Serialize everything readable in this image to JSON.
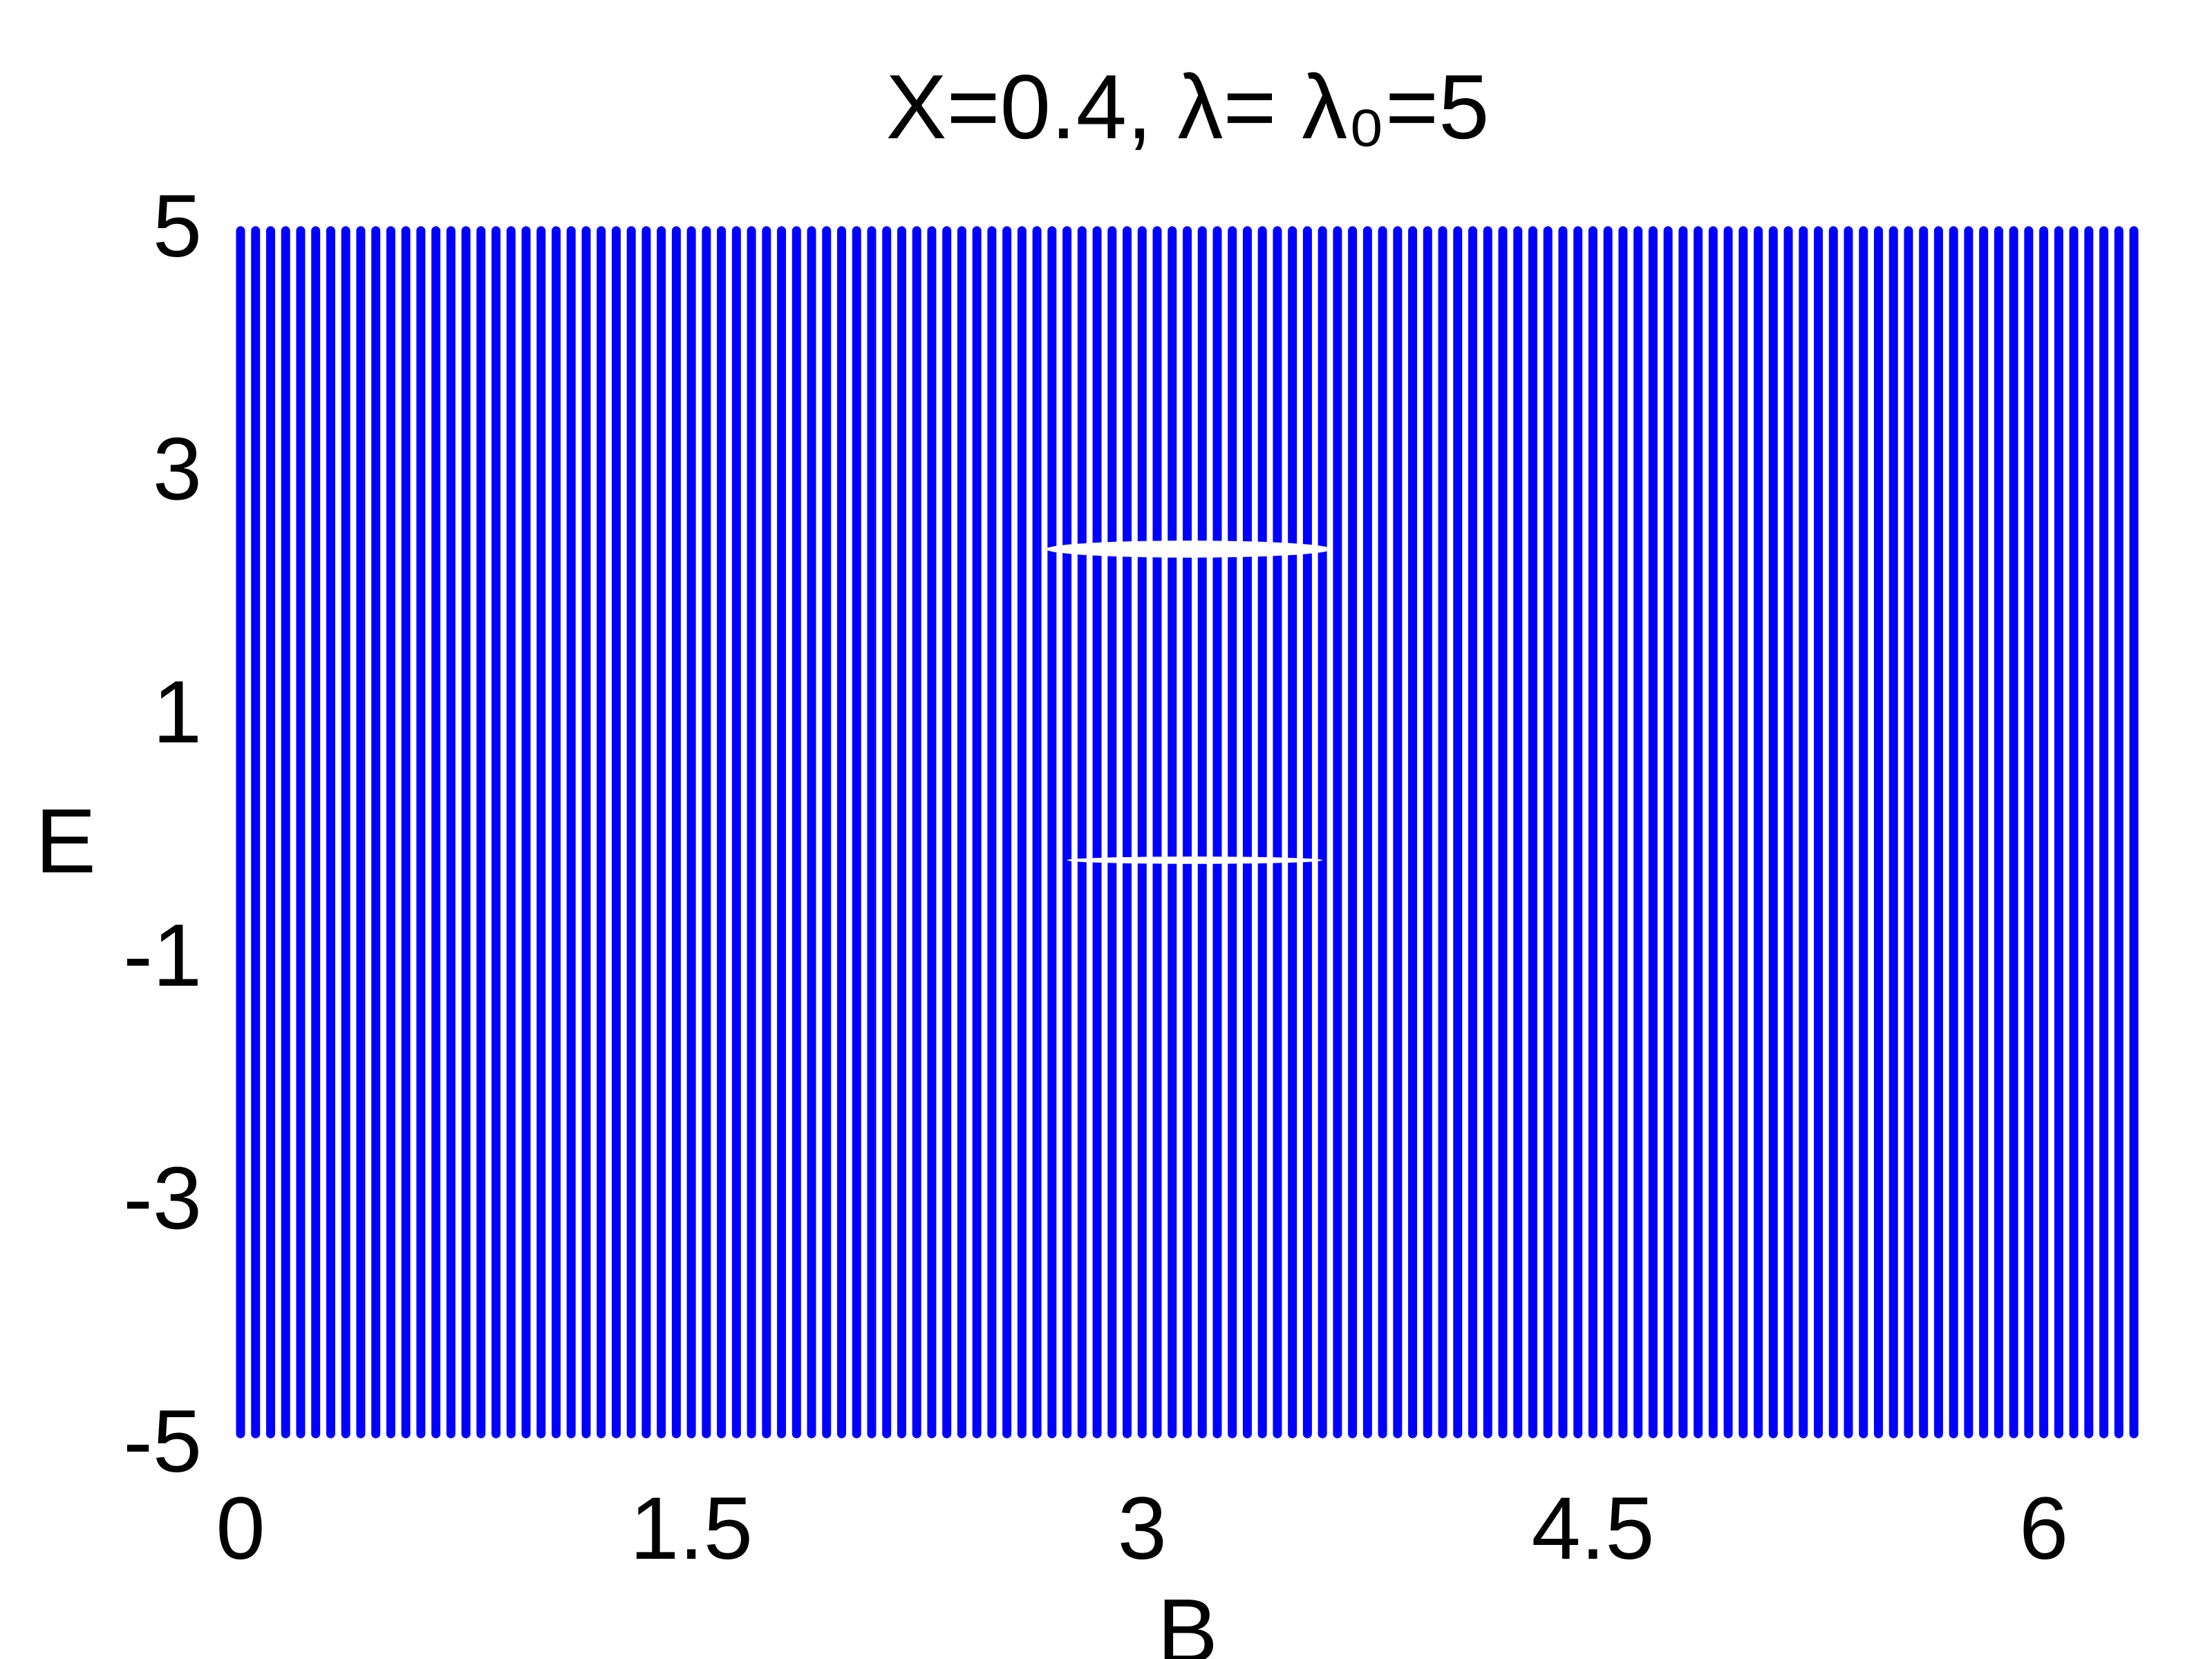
{
  "chart_data": {
    "type": "spectrum",
    "title": "X=0.4, λ= λ₀=5",
    "x_label": "B",
    "y_label": "E",
    "color": "#0000ff",
    "x": [
      0,
      0.05,
      0.1,
      0.15,
      0.2,
      0.25,
      0.3,
      0.35,
      0.4,
      0.45,
      0.5,
      0.55,
      0.6,
      0.65,
      0.7,
      0.75,
      0.8,
      0.85,
      0.9,
      0.95,
      1,
      1.05,
      1.1,
      1.15,
      1.2,
      1.25,
      1.3,
      1.35,
      1.4,
      1.45,
      1.5,
      1.55,
      1.6,
      1.65,
      1.7,
      1.75,
      1.8,
      1.85,
      1.9,
      1.95,
      2,
      2.05,
      2.1,
      2.15,
      2.2,
      2.25,
      2.3,
      2.35,
      2.4,
      2.45,
      2.5,
      2.55,
      2.6,
      2.65,
      2.7,
      2.75,
      2.8,
      2.85,
      2.9,
      2.95,
      3,
      3.05,
      3.1,
      3.15,
      3.2,
      3.25,
      3.3,
      3.35,
      3.4,
      3.45,
      3.5,
      3.55,
      3.6,
      3.65,
      3.7,
      3.75,
      3.8,
      3.85,
      3.9,
      3.95,
      4,
      4.05,
      4.1,
      4.15,
      4.2,
      4.25,
      4.3,
      4.35,
      4.4,
      4.45,
      4.5,
      4.55,
      4.6,
      4.65,
      4.7,
      4.75,
      4.8,
      4.85,
      4.9,
      4.95,
      5,
      5.05,
      5.1,
      5.15,
      5.2,
      5.25,
      5.3,
      5.35,
      5.4,
      5.45,
      5.5,
      5.55,
      5.6,
      5.65,
      5.7,
      5.75,
      5.8,
      5.85,
      5.9,
      5.95,
      6,
      6.05,
      6.1,
      6.15,
      6.2,
      6.25,
      6.3
    ],
    "band": {
      "low": -4.95,
      "high": 4.95
    },
    "gaps": [
      {
        "x": [
          2.68,
          3.63
        ],
        "y": [
          2.26,
          2.4
        ]
      },
      {
        "x": [
          2.75,
          3.6
        ],
        "y": [
          -0.26,
          -0.2
        ]
      }
    ],
    "xlim": [
      0,
      6.3
    ],
    "ylim": [
      -5,
      5
    ],
    "xticks": [
      0,
      1.5,
      3,
      4.5,
      6
    ],
    "yticks": [
      -5,
      -3,
      -1,
      1,
      3,
      5
    ]
  }
}
